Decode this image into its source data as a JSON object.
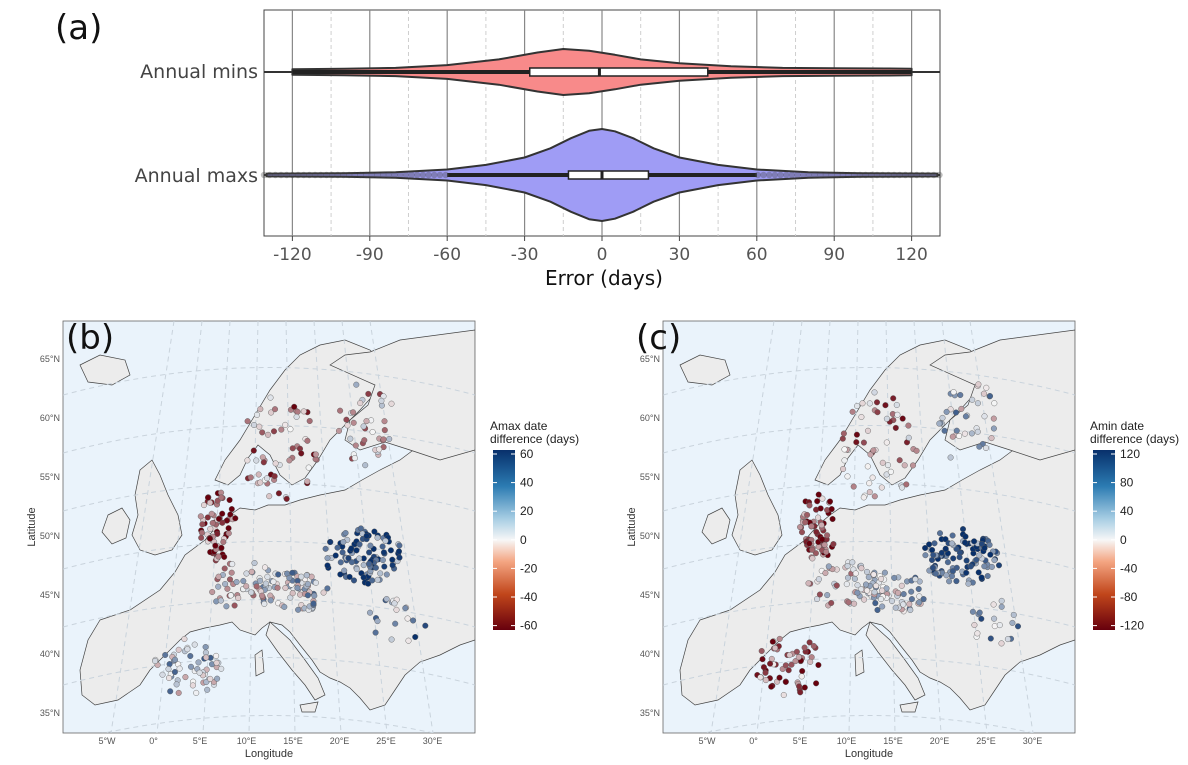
{
  "panel_a": {
    "letter": "(a)"
  },
  "panel_b": {
    "letter": "(b)"
  },
  "panel_c": {
    "letter": "(c)"
  },
  "chart_data": [
    {
      "type": "violin",
      "xlabel": "Error (days)",
      "xlim": [
        -131,
        131
      ],
      "xticks": [
        -120,
        -90,
        -60,
        -30,
        0,
        30,
        60,
        90,
        120
      ],
      "grid": true,
      "categories": [
        "Annual mins",
        "Annual maxs"
      ],
      "series": [
        {
          "name": "Annual mins",
          "color": "#f88a8a",
          "density_x": [
            -120,
            -100,
            -80,
            -60,
            -40,
            -25,
            -15,
            -5,
            5,
            15,
            30,
            50,
            70,
            90,
            110,
            120
          ],
          "density_w": [
            0.12,
            0.14,
            0.18,
            0.3,
            0.55,
            0.85,
            1.0,
            0.92,
            0.75,
            0.55,
            0.38,
            0.25,
            0.18,
            0.16,
            0.15,
            0.14
          ],
          "box": {
            "q1": -28,
            "median": -1,
            "q3": 41,
            "whisker_low": -120,
            "whisker_high": 120
          }
        },
        {
          "name": "Annual maxs",
          "color": "#9f9cf5",
          "density_x": [
            -130,
            -100,
            -80,
            -60,
            -45,
            -30,
            -20,
            -12,
            -5,
            0,
            5,
            12,
            20,
            30,
            45,
            60,
            80,
            100,
            130
          ],
          "density_w": [
            0.03,
            0.04,
            0.06,
            0.12,
            0.22,
            0.38,
            0.58,
            0.8,
            0.96,
            1.0,
            0.95,
            0.8,
            0.58,
            0.38,
            0.22,
            0.12,
            0.06,
            0.04,
            0.03
          ],
          "box": {
            "q1": -13,
            "median": 0,
            "q3": 18,
            "whisker_low": -60,
            "whisker_high": 60
          },
          "outliers_range": [
            -131,
            131
          ]
        }
      ]
    },
    {
      "type": "map",
      "ylabel": "Latitude",
      "xlabel": "Longitude",
      "lat_ticks": [
        "35°N",
        "40°N",
        "45°N",
        "50°N",
        "55°N",
        "60°N",
        "65°N"
      ],
      "lon_ticks": [
        "5°W",
        "0°",
        "5°E",
        "10°E",
        "15°E",
        "20°E",
        "25°E",
        "30°E"
      ],
      "legend": {
        "title": [
          "Amax date",
          "difference (days)"
        ],
        "ticks": [
          "60",
          "40",
          "20",
          "0",
          "-20",
          "-40",
          "-60"
        ],
        "range": [
          -60,
          60
        ]
      }
    },
    {
      "type": "map",
      "ylabel": "Latitude",
      "xlabel": "Longitude",
      "lat_ticks": [
        "35°N",
        "40°N",
        "45°N",
        "50°N",
        "55°N",
        "60°N",
        "65°N"
      ],
      "lon_ticks": [
        "5°W",
        "0°",
        "5°E",
        "10°E",
        "15°E",
        "20°E",
        "25°E",
        "30°E"
      ],
      "legend": {
        "title": [
          "Amin date",
          "difference (days)"
        ],
        "ticks": [
          "120",
          "80",
          "40",
          "0",
          "-40",
          "-80",
          "-120"
        ],
        "range": [
          -120,
          120
        ]
      }
    }
  ]
}
